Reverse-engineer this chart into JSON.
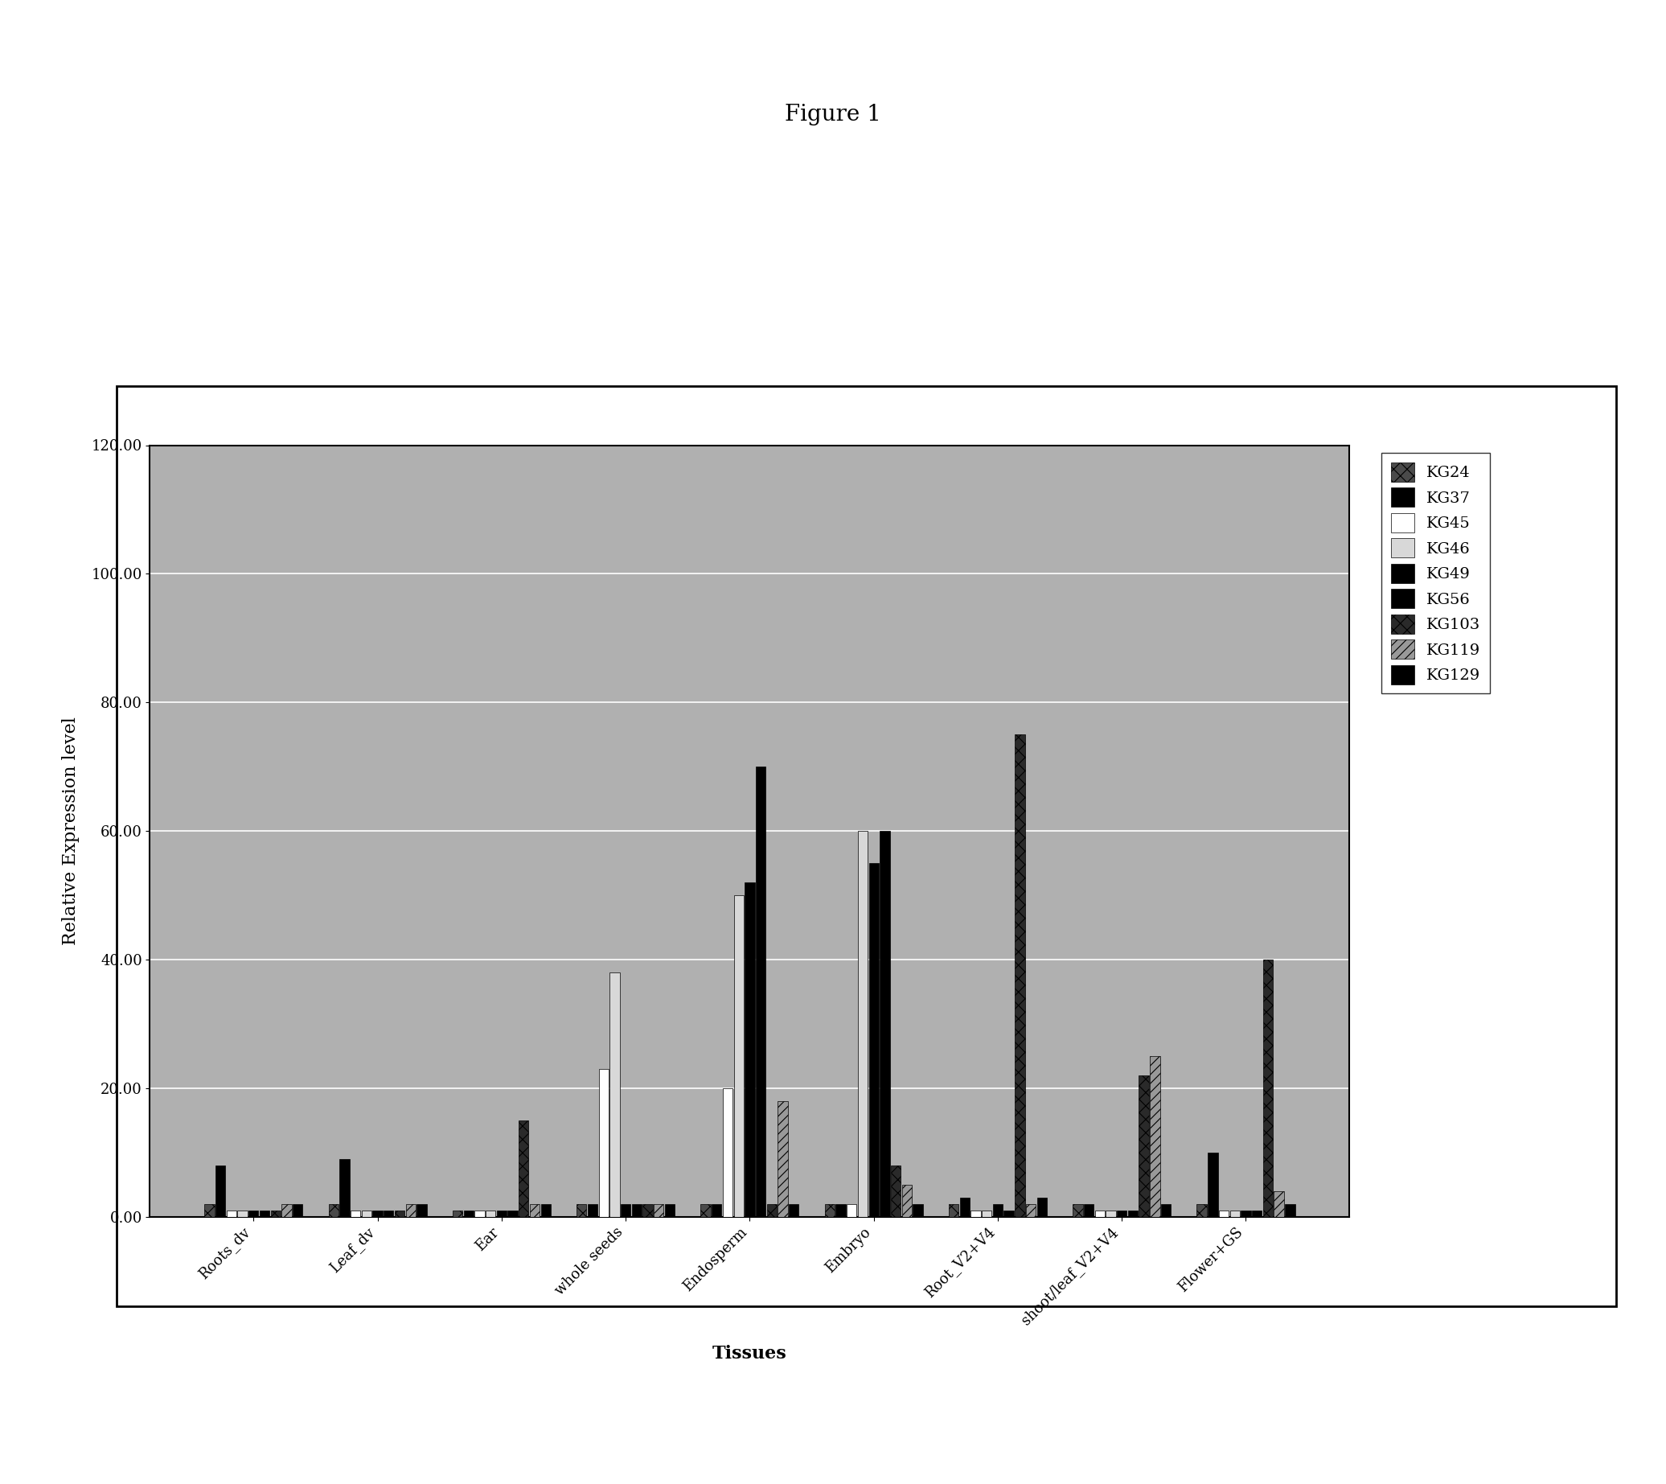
{
  "title": "Figure 1",
  "xlabel": "Tissues",
  "ylabel": "Relative Expression level",
  "ylim": [
    0,
    120
  ],
  "yticks": [
    0,
    20,
    40,
    60,
    80,
    100,
    120
  ],
  "ytick_labels": [
    "0.00",
    "20.00",
    "40.00",
    "60.00",
    "80.00",
    "100.00",
    "120.00"
  ],
  "categories": [
    "Roots_dv",
    "Leaf_dv",
    "Ear",
    "whole seeds",
    "Endosperm",
    "Embryo",
    "Root_V2+V4",
    "shoot/leaf_V2+V4",
    "Flower+GS"
  ],
  "series_names": [
    "KG24",
    "KG37",
    "KG45",
    "KG46",
    "KG49",
    "KG56",
    "KG103",
    "KG119",
    "KG129"
  ],
  "data": {
    "KG24": [
      2.0,
      2.0,
      1.0,
      2.0,
      2.0,
      2.0,
      2.0,
      2.0,
      2.0
    ],
    "KG37": [
      8.0,
      9.0,
      1.0,
      2.0,
      2.0,
      2.0,
      3.0,
      2.0,
      10.0
    ],
    "KG45": [
      1.0,
      1.0,
      1.0,
      23.0,
      20.0,
      2.0,
      1.0,
      1.0,
      1.0
    ],
    "KG46": [
      1.0,
      1.0,
      1.0,
      38.0,
      50.0,
      60.0,
      1.0,
      1.0,
      1.0
    ],
    "KG49": [
      1.0,
      1.0,
      1.0,
      2.0,
      52.0,
      55.0,
      2.0,
      1.0,
      1.0
    ],
    "KG56": [
      1.0,
      1.0,
      1.0,
      2.0,
      70.0,
      60.0,
      1.0,
      1.0,
      1.0
    ],
    "KG103": [
      1.0,
      1.0,
      15.0,
      2.0,
      2.0,
      8.0,
      75.0,
      22.0,
      40.0
    ],
    "KG119": [
      2.0,
      2.0,
      2.0,
      2.0,
      18.0,
      5.0,
      2.0,
      25.0,
      4.0
    ],
    "KG129": [
      2.0,
      2.0,
      2.0,
      2.0,
      2.0,
      2.0,
      3.0,
      2.0,
      2.0
    ]
  },
  "bar_styles": [
    {
      "color": "#4a4a4a",
      "hatch": "xx",
      "edgecolor": "#000000"
    },
    {
      "color": "#000000",
      "hatch": "",
      "edgecolor": "#000000"
    },
    {
      "color": "#ffffff",
      "hatch": "",
      "edgecolor": "#000000"
    },
    {
      "color": "#d8d8d8",
      "hatch": "",
      "edgecolor": "#000000"
    },
    {
      "color": "#000000",
      "hatch": "",
      "edgecolor": "#000000"
    },
    {
      "color": "#000000",
      "hatch": "",
      "edgecolor": "#000000"
    },
    {
      "color": "#2a2a2a",
      "hatch": "xx",
      "edgecolor": "#000000"
    },
    {
      "color": "#999999",
      "hatch": "///",
      "edgecolor": "#000000"
    },
    {
      "color": "#000000",
      "hatch": "",
      "edgecolor": "#000000"
    }
  ],
  "title_fontsize": 20,
  "axis_label_fontsize": 16,
  "tick_fontsize": 13,
  "legend_fontsize": 14,
  "grid_color": "#ffffff",
  "plot_bg_color": "#b0b0b0",
  "figure_bg_color": "#ffffff"
}
